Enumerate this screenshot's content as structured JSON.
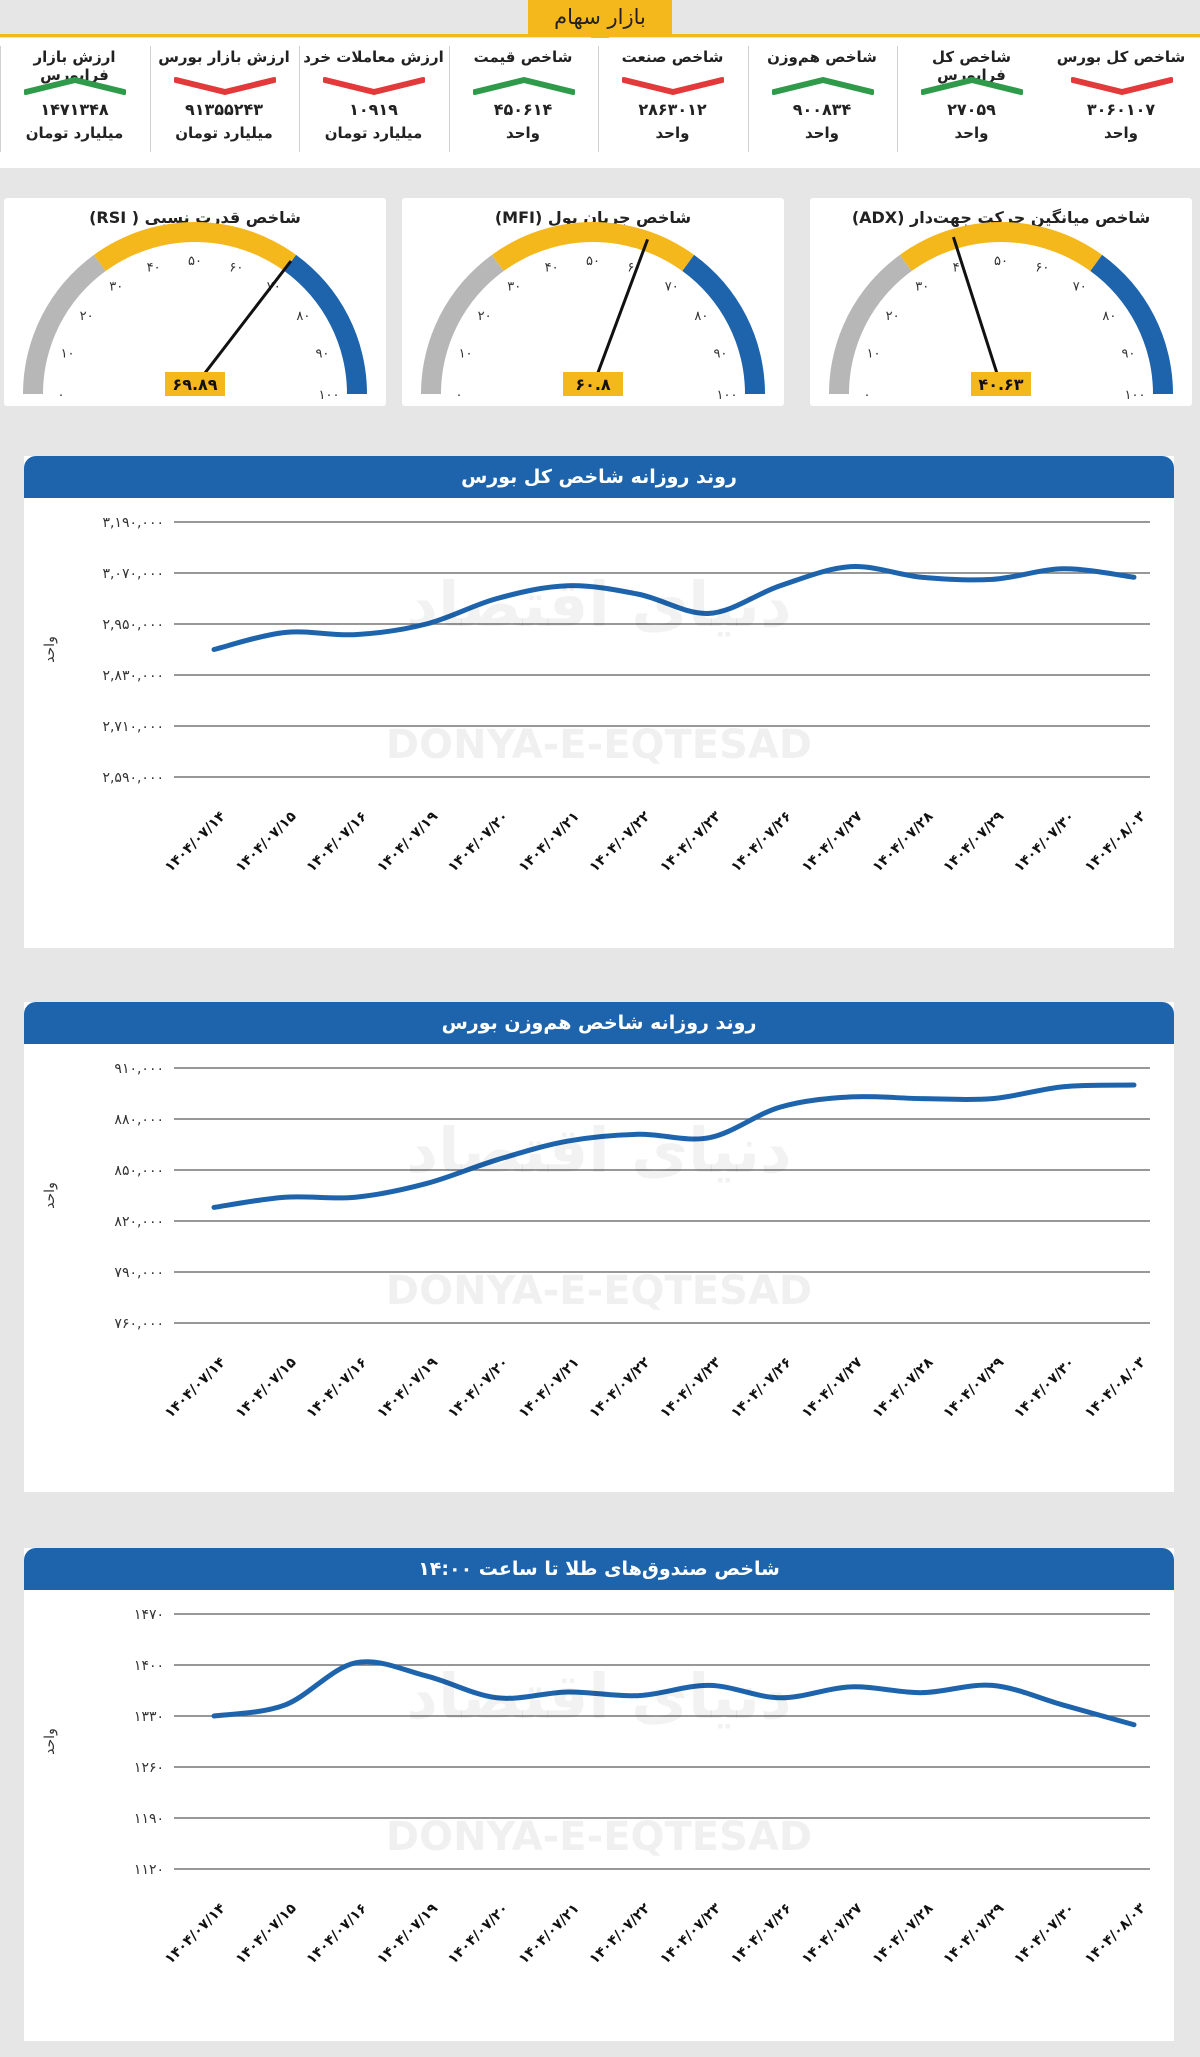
{
  "header": {
    "title": "بازار سهام"
  },
  "stats": [
    {
      "label": "شاخص کل بورس",
      "value": "۳۰۶۰۱۰۷",
      "unit": "واحد",
      "trend": "down"
    },
    {
      "label": "شاخص کل فرابورس",
      "value": "۲۷۰۵۹",
      "unit": "واحد",
      "trend": "up"
    },
    {
      "label": "شاخص هم‌وزن",
      "value": "۹۰۰۸۳۴",
      "unit": "واحد",
      "trend": "up"
    },
    {
      "label": "شاخص صنعت",
      "value": "۲۸۶۳۰۱۲",
      "unit": "واحد",
      "trend": "down"
    },
    {
      "label": "شاخص قیمت",
      "value": "۴۵۰۶۱۴",
      "unit": "واحد",
      "trend": "up"
    },
    {
      "label": "ارزش معاملات خرد",
      "value": "۱۰۹۱۹",
      "unit": "میلیارد تومان",
      "trend": "down"
    },
    {
      "label": "ارزش بازار بورس",
      "value": "۹۱۳۵۵۲۴۳",
      "unit": "میلیارد تومان",
      "trend": "down"
    },
    {
      "label": "ارزش بازار فرابورس",
      "value": "۱۴۷۱۳۴۸",
      "unit": "میلیارد تومان",
      "trend": "up"
    }
  ],
  "colors": {
    "up": "#2e9a4a",
    "down": "#e23a3a",
    "accent": "#f5b81c",
    "blue": "#1d64ad",
    "grey": "#b7b7b7"
  },
  "gauges": [
    {
      "title": "شاخص میانگین حرکت جهت‌دار (ADX)",
      "value": 40.63,
      "value_label": "۴۰.۶۳"
    },
    {
      "title": "شاخص جریان پول (MFI)",
      "value": 60.8,
      "value_label": "۶۰.۸"
    },
    {
      "title": "شاخص قدرت نسبی ( RSI)",
      "value": 69.89,
      "value_label": "۶۹.۸۹"
    }
  ],
  "gauge_ticks": [
    "۰",
    "۱۰",
    "۲۰",
    "۳۰",
    "۴۰",
    "۵۰",
    "۶۰",
    "۷۰",
    "۸۰",
    "۹۰",
    "۱۰۰"
  ],
  "watermark": {
    "latin": "DONYA-E-EQTESAD",
    "persian": "دنیای اقتصاد"
  },
  "chart_data": [
    {
      "type": "line",
      "title": "روند روزانه شاخص کل بورس",
      "ylabel": "واحد",
      "categories": [
        "۱۴۰۴/۰۷/۱۴",
        "۱۴۰۴/۰۷/۱۵",
        "۱۴۰۴/۰۷/۱۶",
        "۱۴۰۴/۰۷/۱۹",
        "۱۴۰۴/۰۷/۲۰",
        "۱۴۰۴/۰۷/۲۱",
        "۱۴۰۴/۰۷/۲۲",
        "۱۴۰۴/۰۷/۲۳",
        "۱۴۰۴/۰۷/۲۶",
        "۱۴۰۴/۰۷/۲۷",
        "۱۴۰۴/۰۷/۲۸",
        "۱۴۰۴/۰۷/۲۹",
        "۱۴۰۴/۰۷/۳۰",
        "۱۴۰۴/۰۸/۰۳"
      ],
      "values": [
        2890000,
        2930000,
        2925000,
        2950000,
        3010000,
        3040000,
        3020000,
        2975000,
        3040000,
        3085000,
        3060000,
        3055000,
        3080000,
        3060000
      ],
      "ylim": [
        2590000,
        3190000
      ],
      "yticks": [
        3190000,
        3070000,
        2950000,
        2830000,
        2710000,
        2590000
      ],
      "ytick_labels": [
        "۳,۱۹۰,۰۰۰",
        "۳,۰۷۰,۰۰۰",
        "۲,۹۵۰,۰۰۰",
        "۲,۸۳۰,۰۰۰",
        "۲,۷۱۰,۰۰۰",
        "۲,۵۹۰,۰۰۰"
      ]
    },
    {
      "type": "line",
      "title": "روند روزانه شاخص هم‌وزن بورس",
      "ylabel": "واحد",
      "categories": [
        "۱۴۰۴/۰۷/۱۴",
        "۱۴۰۴/۰۷/۱۵",
        "۱۴۰۴/۰۷/۱۶",
        "۱۴۰۴/۰۷/۱۹",
        "۱۴۰۴/۰۷/۲۰",
        "۱۴۰۴/۰۷/۲۱",
        "۱۴۰۴/۰۷/۲۲",
        "۱۴۰۴/۰۷/۲۳",
        "۱۴۰۴/۰۷/۲۶",
        "۱۴۰۴/۰۷/۲۷",
        "۱۴۰۴/۰۷/۲۸",
        "۱۴۰۴/۰۷/۲۹",
        "۱۴۰۴/۰۷/۳۰",
        "۱۴۰۴/۰۸/۰۳"
      ],
      "values": [
        828000,
        834000,
        834000,
        842000,
        856000,
        867000,
        871000,
        869000,
        887000,
        893000,
        892000,
        892000,
        899000,
        900000
      ],
      "ylim": [
        760000,
        910000
      ],
      "yticks": [
        910000,
        880000,
        850000,
        820000,
        790000,
        760000
      ],
      "ytick_labels": [
        "۹۱۰,۰۰۰",
        "۸۸۰,۰۰۰",
        "۸۵۰,۰۰۰",
        "۸۲۰,۰۰۰",
        "۷۹۰,۰۰۰",
        "۷۶۰,۰۰۰"
      ]
    },
    {
      "type": "line",
      "title": "شاخص صندوق‌های طلا تا ساعت ۱۴:۰۰",
      "ylabel": "واحد",
      "categories": [
        "۱۴۰۴/۰۷/۱۴",
        "۱۴۰۴/۰۷/۱۵",
        "۱۴۰۴/۰۷/۱۶",
        "۱۴۰۴/۰۷/۱۹",
        "۱۴۰۴/۰۷/۲۰",
        "۱۴۰۴/۰۷/۲۱",
        "۱۴۰۴/۰۷/۲۲",
        "۱۴۰۴/۰۷/۲۳",
        "۱۴۰۴/۰۷/۲۶",
        "۱۴۰۴/۰۷/۲۷",
        "۱۴۰۴/۰۷/۲۸",
        "۱۴۰۴/۰۷/۲۹",
        "۱۴۰۴/۰۷/۳۰",
        "۱۴۰۴/۰۸/۰۳"
      ],
      "values": [
        1330,
        1345,
        1403,
        1385,
        1355,
        1363,
        1358,
        1372,
        1355,
        1370,
        1362,
        1372,
        1345,
        1318
      ],
      "ylim": [
        1120,
        1470
      ],
      "yticks": [
        1470,
        1400,
        1330,
        1260,
        1190,
        1120
      ],
      "ytick_labels": [
        "۱۴۷۰",
        "۱۴۰۰",
        "۱۳۳۰",
        "۱۲۶۰",
        "۱۱۹۰",
        "۱۱۲۰"
      ]
    }
  ]
}
